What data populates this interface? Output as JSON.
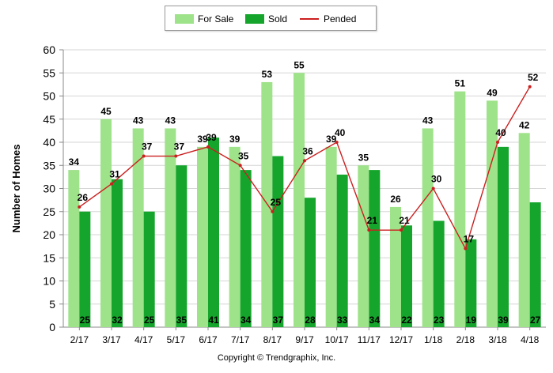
{
  "legend": {
    "for_sale": "For Sale",
    "sold": "Sold",
    "pended": "Pended"
  },
  "colors": {
    "for_sale": "#9ee28a",
    "sold": "#15a52c",
    "pended": "#cc1f1f"
  },
  "copyright": "Copyright © Trendgraphix, Inc.",
  "chart_data": {
    "type": "bar",
    "title": "",
    "xlabel": "",
    "ylabel": "Number of Homes",
    "ylim": [
      0,
      60
    ],
    "yticks": [
      0,
      5,
      10,
      15,
      20,
      25,
      30,
      35,
      40,
      45,
      50,
      55,
      60
    ],
    "grid": true,
    "legend_position": "top-center",
    "categories": [
      "2/17",
      "3/17",
      "4/17",
      "5/17",
      "6/17",
      "7/17",
      "8/17",
      "9/17",
      "10/17",
      "11/17",
      "12/17",
      "1/18",
      "2/18",
      "3/18",
      "4/18"
    ],
    "series": [
      {
        "name": "For Sale",
        "type": "bar",
        "values": [
          34,
          45,
          43,
          43,
          39,
          39,
          53,
          55,
          39,
          35,
          26,
          43,
          51,
          49,
          42
        ]
      },
      {
        "name": "Sold",
        "type": "bar",
        "values": [
          25,
          32,
          25,
          35,
          41,
          34,
          37,
          28,
          33,
          34,
          22,
          23,
          19,
          39,
          27
        ]
      },
      {
        "name": "Pended",
        "type": "line",
        "values": [
          26,
          31,
          37,
          37,
          39,
          35,
          25,
          36,
          40,
          21,
          21,
          30,
          17,
          40,
          52
        ]
      }
    ]
  }
}
